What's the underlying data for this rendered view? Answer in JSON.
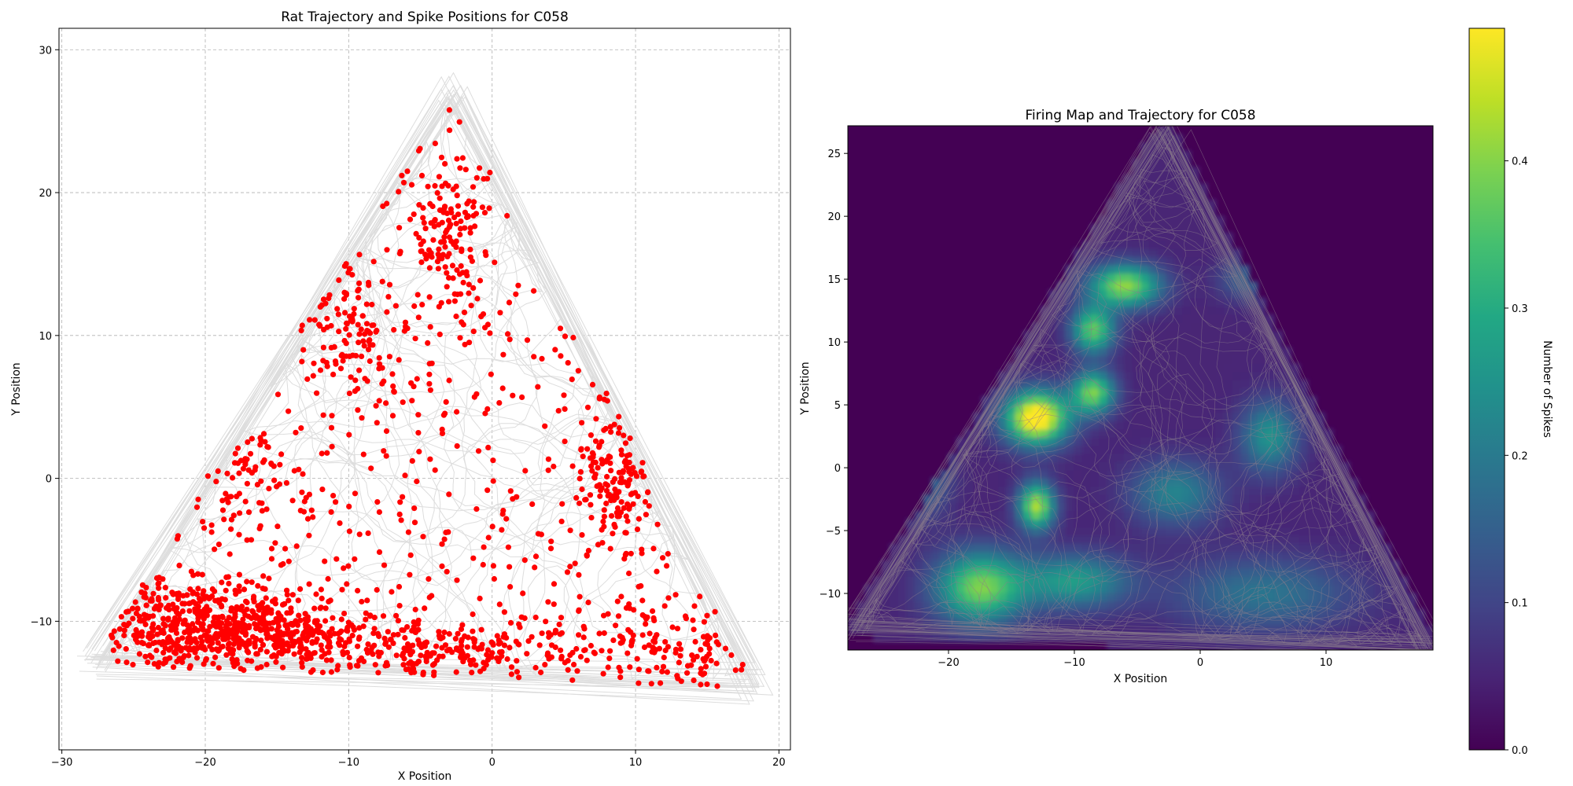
{
  "chart_data": [
    {
      "type": "scatter",
      "title": "Rat Trajectory and Spike Positions for  C058",
      "xlabel": "X Position",
      "ylabel": "Y Position",
      "xlim": [
        -30.2,
        20.8
      ],
      "ylim": [
        -19,
        31.5
      ],
      "xticks": [
        -30,
        -20,
        -10,
        0,
        10,
        20
      ],
      "yticks": [
        -10,
        0,
        10,
        20,
        30
      ],
      "grid": true,
      "trajectory_color": "#dddddd",
      "spike_color": "#ff0000",
      "arena_vertices": [
        [
          -27.6,
          -12.8
        ],
        [
          -2.8,
          27.0
        ],
        [
          18.2,
          -14.4
        ]
      ],
      "spike_hotspots": [
        {
          "x": -21,
          "y": -10.5,
          "sx": 3.5,
          "sy": 1.8,
          "weight": 6
        },
        {
          "x": -14,
          "y": -11,
          "sx": 3,
          "sy": 1.2,
          "weight": 3
        },
        {
          "x": -4,
          "y": -12,
          "sx": 4,
          "sy": 1.0,
          "weight": 2.5
        },
        {
          "x": 10,
          "y": -12,
          "sx": 4,
          "sy": 1.5,
          "weight": 2
        },
        {
          "x": 8.5,
          "y": 0,
          "sx": 1.2,
          "sy": 2.5,
          "weight": 1.5
        },
        {
          "x": -3,
          "y": 17,
          "sx": 1.2,
          "sy": 3,
          "weight": 1.5
        },
        {
          "x": -10,
          "y": 10,
          "sx": 1.5,
          "sy": 2,
          "weight": 1
        },
        {
          "x": -17,
          "y": 0,
          "sx": 2,
          "sy": 2,
          "weight": 1
        }
      ]
    },
    {
      "type": "heatmap",
      "title": "Firing Map and Trajectory for  C058",
      "xlabel": "X Position",
      "ylabel": "Y Position",
      "xlim": [
        -28,
        18.5
      ],
      "ylim": [
        -14.5,
        27.2
      ],
      "xticks": [
        -20,
        -10,
        0,
        10
      ],
      "yticks": [
        -10,
        -5,
        0,
        5,
        10,
        15,
        20,
        25
      ],
      "colormap": "viridis",
      "colorbar": {
        "label": "Number of Spikes",
        "range": [
          0,
          0.49
        ],
        "ticks": [
          0.0,
          0.1,
          0.2,
          0.3,
          0.4
        ],
        "tick_labels": [
          "0.0",
          "0.1",
          "0.2",
          "0.3",
          "0.4"
        ]
      },
      "trajectory_color": "#8c7d8c",
      "firing_peaks": [
        {
          "x": -13,
          "y": 4,
          "amplitude": 0.49,
          "sx": 1.8,
          "sy": 1.5
        },
        {
          "x": -6,
          "y": 14.5,
          "amplitude": 0.36,
          "sx": 2.0,
          "sy": 1.2
        },
        {
          "x": -8.5,
          "y": 11,
          "amplitude": 0.32,
          "sx": 1.2,
          "sy": 1.3
        },
        {
          "x": -8.5,
          "y": 6,
          "amplitude": 0.34,
          "sx": 1.2,
          "sy": 1.2
        },
        {
          "x": -13,
          "y": -3,
          "amplitude": 0.38,
          "sx": 1.0,
          "sy": 1.3
        },
        {
          "x": -17.5,
          "y": -9.5,
          "amplitude": 0.34,
          "sx": 2.5,
          "sy": 2.0
        },
        {
          "x": -10,
          "y": -9,
          "amplitude": 0.22,
          "sx": 3.0,
          "sy": 1.5
        },
        {
          "x": 5.5,
          "y": 2.5,
          "amplitude": 0.2,
          "sx": 1.6,
          "sy": 2.0
        },
        {
          "x": -2,
          "y": -2,
          "amplitude": 0.17,
          "sx": 2.5,
          "sy": 1.8
        },
        {
          "x": 3.5,
          "y": 15,
          "amplitude": 0.1,
          "sx": 1.5,
          "sy": 1.2
        },
        {
          "x": 5,
          "y": -10,
          "amplitude": 0.14,
          "sx": 5.0,
          "sy": 2.0
        },
        {
          "x": -22,
          "y": -1,
          "amplitude": 0.12,
          "sx": 1.5,
          "sy": 2.0
        }
      ]
    }
  ]
}
